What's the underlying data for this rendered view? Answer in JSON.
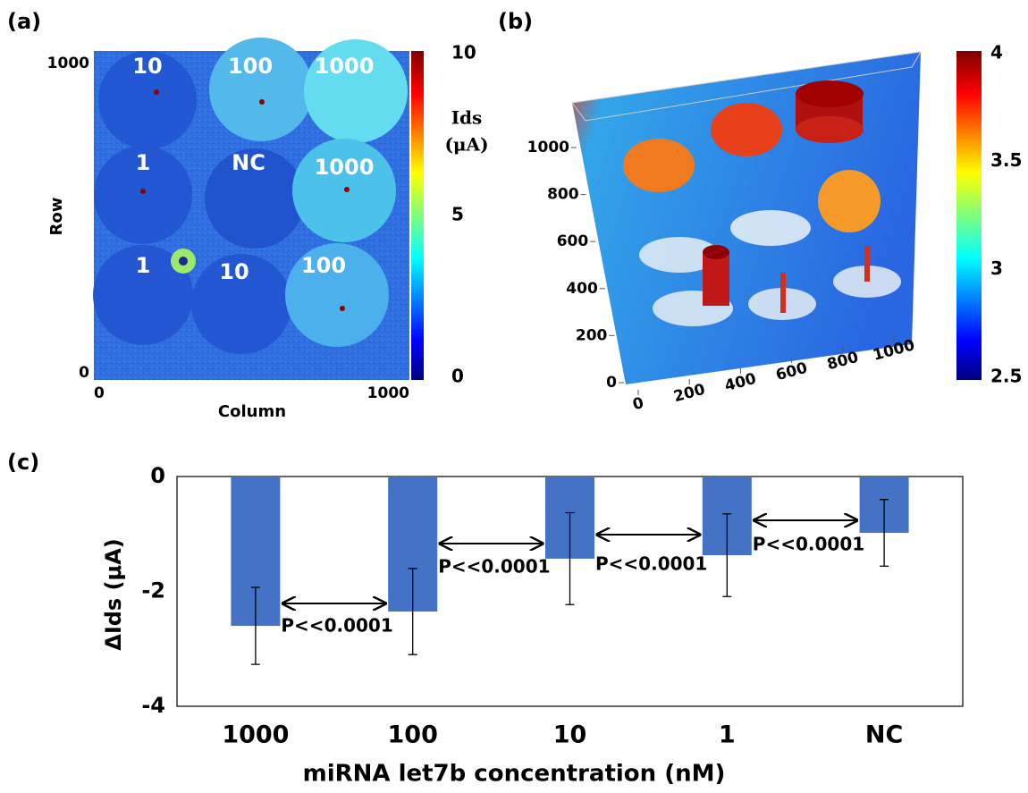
{
  "chart_data": [
    {
      "type": "heatmap",
      "panel_label": "(a)",
      "xlabel": "Column",
      "ylabel": "Row",
      "xlim": [
        0,
        1000
      ],
      "xticks": [
        0,
        1000
      ],
      "ylim": [
        0,
        1000
      ],
      "yticks": [
        0,
        1000
      ],
      "spot_labels": [
        "10",
        "100",
        "1000",
        "1",
        "NC",
        "1000",
        "1",
        "10",
        "100"
      ],
      "colorbar_label": [
        "Ids",
        "(μA)"
      ],
      "clim": [
        0,
        10
      ],
      "cticks": [
        0,
        5,
        10
      ]
    },
    {
      "type": "surface",
      "panel_label": "(b)",
      "xlim": [
        0,
        1000
      ],
      "xticks": [
        0,
        200,
        400,
        600,
        800,
        1000
      ],
      "ylim": [
        0,
        1000
      ],
      "yticks": [
        0,
        200,
        400,
        600,
        800,
        1000
      ],
      "clim": [
        2.5,
        4
      ],
      "cticks": [
        2.5,
        3,
        3.5,
        4
      ]
    },
    {
      "type": "bar",
      "panel_label": "(c)",
      "xlabel": "miRNA let7b concentration (nM)",
      "ylabel": "ΔIds (μA)",
      "categories": [
        "1000",
        "100",
        "10",
        "1",
        "NC"
      ],
      "values": [
        -2.6,
        -2.35,
        -1.43,
        -1.37,
        -0.98
      ],
      "errors": [
        0.67,
        0.75,
        0.8,
        0.72,
        0.58
      ],
      "color": "#4472c4",
      "ylim": [
        -4,
        0
      ],
      "yticks": [
        -4,
        -2,
        0
      ],
      "annotations": [
        "P<<0.0001",
        "P<<0.0001",
        "P<<0.0001",
        "P<<0.0001"
      ]
    }
  ]
}
